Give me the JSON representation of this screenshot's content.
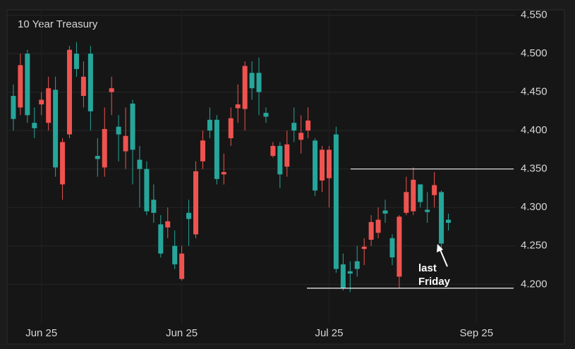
{
  "chart_data": {
    "type": "candlestick",
    "title": "10 Year Treasury",
    "up_color": "#ef5350",
    "down_color": "#26a69a",
    "open": [
      4.445,
      4.43,
      4.5,
      4.41,
      4.434,
      4.41,
      4.453,
      4.33,
      4.395,
      4.5,
      4.445,
      4.5,
      4.367,
      4.352,
      4.45,
      4.405,
      4.373,
      4.435,
      4.362,
      4.35,
      4.31,
      4.278,
      4.274,
      4.25,
      4.207,
      4.293,
      4.265,
      4.36,
      4.414,
      4.414,
      4.343,
      4.39,
      4.429,
      4.428,
      4.475,
      4.475,
      4.423,
      4.367,
      4.38,
      4.353,
      4.41,
      4.388,
      4.4,
      4.387,
      4.335,
      4.338,
      4.395,
      4.226,
      4.217,
      4.23,
      4.246,
      4.258,
      4.267,
      4.296,
      4.26,
      4.21,
      4.293,
      4.295,
      4.33,
      4.297,
      4.316,
      4.32,
      4.284
    ],
    "high": [
      4.46,
      4.5,
      4.505,
      4.43,
      4.45,
      4.47,
      4.47,
      4.39,
      4.51,
      4.515,
      4.49,
      4.51,
      4.39,
      4.43,
      4.47,
      4.42,
      4.43,
      4.44,
      4.38,
      4.36,
      4.33,
      4.29,
      4.3,
      4.27,
      4.25,
      4.31,
      4.36,
      4.4,
      4.43,
      4.42,
      4.37,
      4.43,
      4.46,
      4.49,
      4.49,
      4.495,
      4.43,
      4.385,
      4.385,
      4.4,
      4.43,
      4.42,
      4.43,
      4.39,
      4.38,
      4.38,
      4.405,
      4.24,
      4.23,
      4.25,
      4.26,
      4.29,
      4.3,
      4.31,
      4.265,
      4.29,
      4.34,
      4.352,
      4.33,
      4.32,
      4.346,
      4.322,
      4.292
    ],
    "low": [
      4.4,
      4.42,
      4.41,
      4.39,
      4.42,
      4.4,
      4.34,
      4.31,
      4.39,
      4.47,
      4.43,
      4.4,
      4.34,
      4.34,
      4.42,
      4.36,
      4.35,
      4.33,
      4.3,
      4.29,
      4.28,
      4.235,
      4.26,
      4.22,
      4.205,
      4.25,
      4.26,
      4.35,
      4.39,
      4.33,
      4.33,
      4.38,
      4.41,
      4.4,
      4.44,
      4.42,
      4.41,
      4.365,
      4.325,
      4.34,
      4.385,
      4.37,
      4.39,
      4.315,
      4.32,
      4.3,
      4.215,
      4.192,
      4.19,
      4.21,
      4.225,
      4.25,
      4.26,
      4.28,
      4.225,
      4.195,
      4.29,
      4.29,
      4.3,
      4.28,
      4.3,
      4.247,
      4.27
    ],
    "close": [
      4.415,
      4.485,
      4.42,
      4.403,
      4.44,
      4.455,
      4.352,
      4.385,
      4.505,
      4.48,
      4.47,
      4.425,
      4.363,
      4.402,
      4.455,
      4.395,
      4.393,
      4.375,
      4.35,
      4.295,
      4.293,
      4.24,
      4.282,
      4.226,
      4.24,
      4.285,
      4.347,
      4.387,
      4.4,
      4.337,
      4.346,
      4.416,
      4.434,
      4.484,
      4.455,
      4.45,
      4.418,
      4.38,
      4.343,
      4.382,
      4.4,
      4.397,
      4.413,
      4.322,
      4.375,
      4.375,
      4.22,
      4.195,
      4.214,
      4.22,
      4.249,
      4.281,
      4.284,
      4.292,
      4.235,
      4.288,
      4.32,
      4.336,
      4.307,
      4.294,
      4.329,
      4.253,
      4.28
    ],
    "xlim": [
      -0.9,
      71.5
    ],
    "xticks": [
      {
        "value": 4,
        "label": "Jun 25"
      },
      {
        "value": 24,
        "label": "Jun 25"
      },
      {
        "value": 45,
        "label": "Jul 25"
      },
      {
        "value": 66,
        "label": "Sep 25"
      }
    ],
    "ylim": [
      4.148,
      4.556
    ],
    "yticks": [
      {
        "value": 4.2,
        "label": "4.200"
      },
      {
        "value": 4.25,
        "label": "4.250"
      },
      {
        "value": 4.3,
        "label": "4.300"
      },
      {
        "value": 4.35,
        "label": "4.350"
      },
      {
        "value": 4.4,
        "label": "4.400"
      },
      {
        "value": 4.45,
        "label": "4.450"
      },
      {
        "value": 4.5,
        "label": "4.500"
      },
      {
        "value": 4.55,
        "label": "4.550"
      }
    ],
    "grid": true,
    "hlines": [
      4.35,
      4.195
    ],
    "annotation": [
      "last",
      "Friday"
    ]
  }
}
